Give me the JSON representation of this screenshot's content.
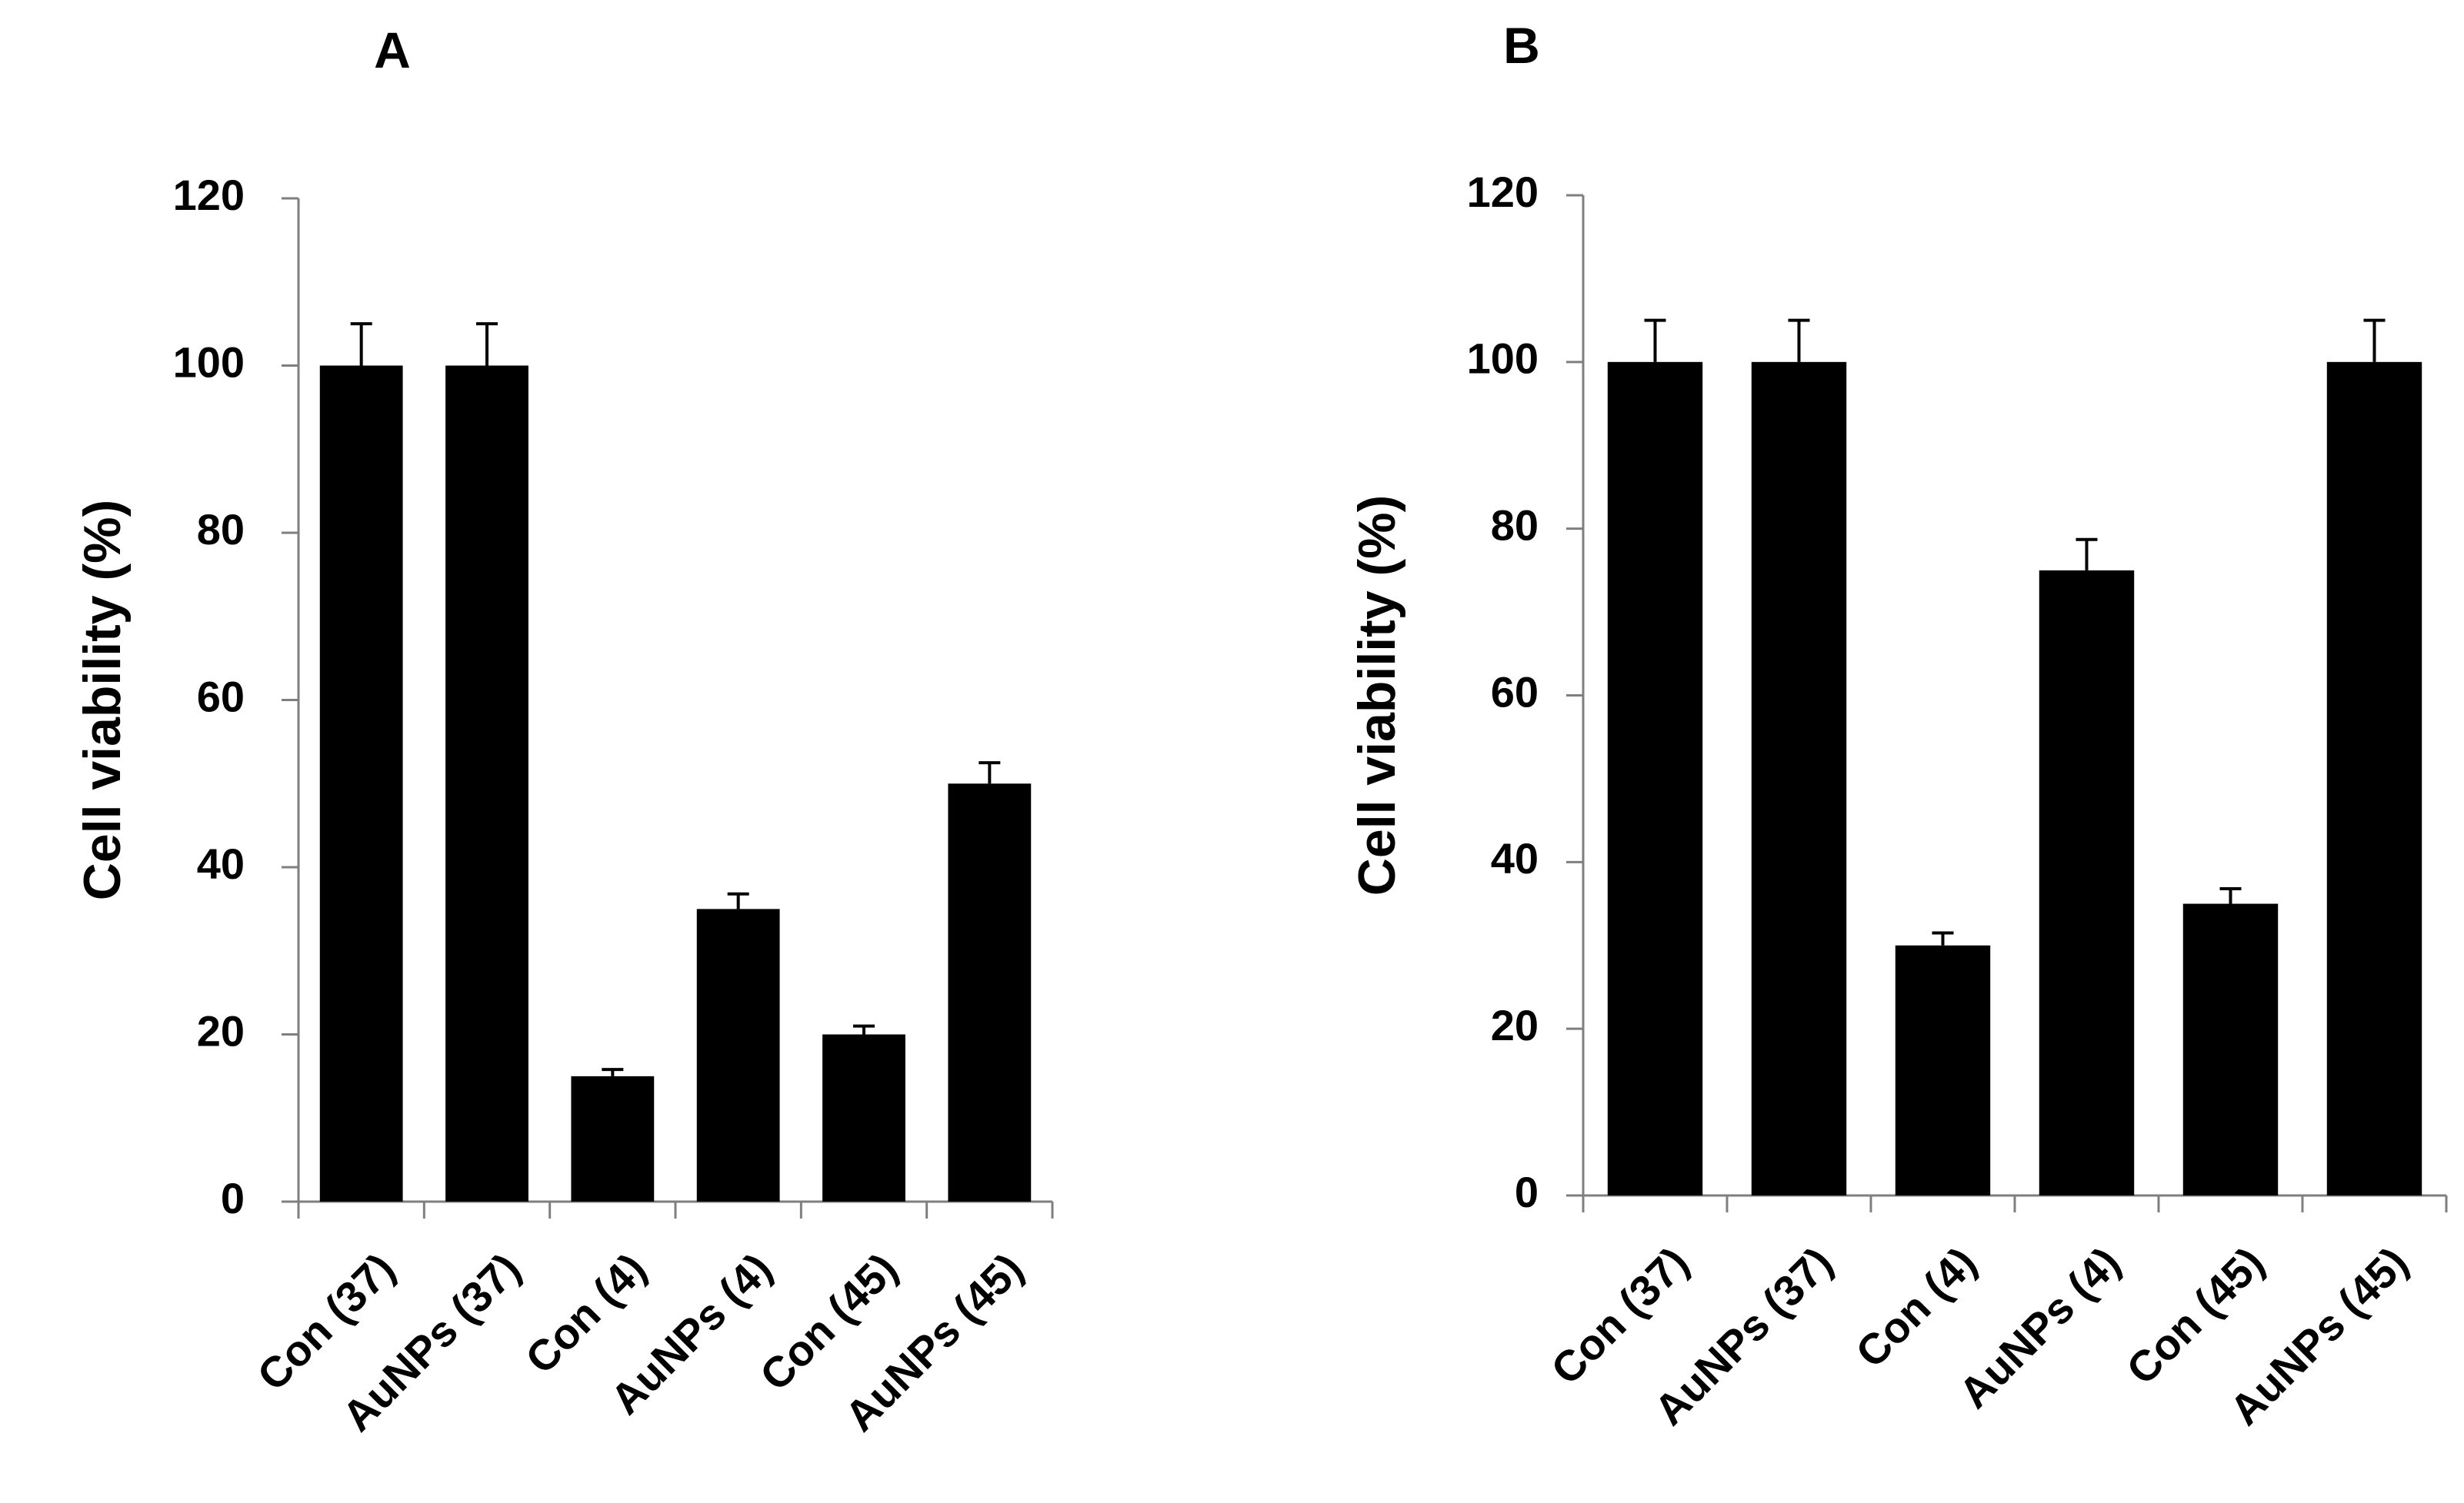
{
  "chart_data": [
    {
      "type": "bar",
      "panel_label": "A",
      "ylabel": "Cell viability (%)",
      "ylim": [
        0,
        120
      ],
      "yticks": [
        "0",
        "20",
        "40",
        "60",
        "80",
        "100",
        "120"
      ],
      "categories": [
        "Con (37)",
        "AuNPs (37)",
        "Con (4)",
        "AuNPs (4)",
        "Con (45)",
        "AuNPs (45)"
      ],
      "values": [
        100,
        100,
        15,
        35,
        20,
        50
      ],
      "errors": [
        5,
        5,
        0.8,
        1.8,
        1,
        2.5
      ],
      "bar_color": "#000000",
      "grid": false
    },
    {
      "type": "bar",
      "panel_label": "B",
      "ylabel": "Cell viability (%)",
      "ylim": [
        0,
        120
      ],
      "yticks": [
        "0",
        "20",
        "40",
        "60",
        "80",
        "100",
        "120"
      ],
      "categories": [
        "Con (37)",
        "AuNPs (37)",
        "Con (4)",
        "AuNPs (4)",
        "Con (45)",
        "AuNPs (45)"
      ],
      "values": [
        100,
        100,
        30,
        75,
        35,
        100
      ],
      "errors": [
        5,
        5,
        1.5,
        3.7,
        1.8,
        5
      ],
      "bar_color": "#000000",
      "grid": false
    }
  ]
}
